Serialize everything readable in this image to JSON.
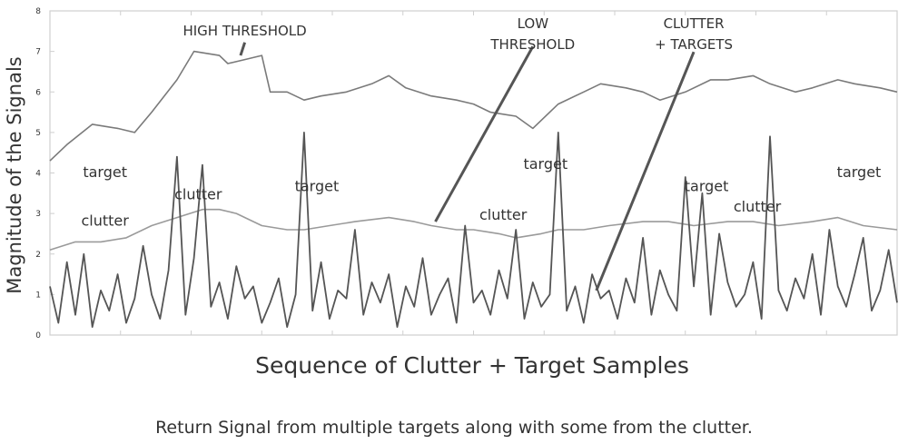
{
  "colors": {
    "background": "#ffffff",
    "frame": "#cfcfcf",
    "high_threshold": "#7a7a7a",
    "low_threshold": "#9a9a9a",
    "clutter_targets": "#555555",
    "text": "#333333"
  },
  "chart_data": {
    "type": "line",
    "xlabel": "Sequence of Clutter + Target Samples",
    "ylabel": "Magnitude of the Signals",
    "ylim": [
      0,
      8
    ],
    "yticks": [
      "0",
      "1",
      "2",
      "3",
      "4",
      "5",
      "6",
      "7",
      "8"
    ],
    "xlim": [
      0,
      100
    ],
    "grid": false,
    "series": [
      {
        "name": "HIGH THRESHOLD",
        "x": [
          0,
          2,
          5,
          8,
          10,
          12,
          15,
          17,
          20,
          21,
          23,
          25,
          26,
          28,
          30,
          32,
          35,
          38,
          40,
          42,
          45,
          48,
          50,
          52,
          55,
          57,
          60,
          63,
          65,
          68,
          70,
          72,
          75,
          78,
          80,
          83,
          85,
          88,
          90,
          93,
          95,
          98,
          100
        ],
        "y": [
          4.3,
          4.7,
          5.2,
          5.1,
          5.0,
          5.5,
          6.3,
          7.0,
          6.9,
          6.7,
          6.8,
          6.9,
          6.0,
          6.0,
          5.8,
          5.9,
          6.0,
          6.2,
          6.4,
          6.1,
          5.9,
          5.8,
          5.7,
          5.5,
          5.4,
          5.1,
          5.7,
          6.0,
          6.2,
          6.1,
          6.0,
          5.8,
          6.0,
          6.3,
          6.3,
          6.4,
          6.2,
          6.0,
          6.1,
          6.3,
          6.2,
          6.1,
          6.0
        ]
      },
      {
        "name": "LOW THRESHOLD",
        "x": [
          0,
          3,
          6,
          9,
          12,
          15,
          18,
          20,
          22,
          25,
          28,
          30,
          33,
          36,
          40,
          43,
          45,
          48,
          50,
          53,
          55,
          58,
          60,
          63,
          66,
          70,
          73,
          76,
          80,
          83,
          86,
          90,
          93,
          96,
          100
        ],
        "y": [
          2.1,
          2.3,
          2.3,
          2.4,
          2.7,
          2.9,
          3.1,
          3.1,
          3.0,
          2.7,
          2.6,
          2.6,
          2.7,
          2.8,
          2.9,
          2.8,
          2.7,
          2.6,
          2.6,
          2.5,
          2.4,
          2.5,
          2.6,
          2.6,
          2.7,
          2.8,
          2.8,
          2.7,
          2.8,
          2.8,
          2.7,
          2.8,
          2.9,
          2.7,
          2.6
        ]
      },
      {
        "name": "CLUTTER + TARGETS",
        "x": [
          0,
          1,
          2,
          3,
          4,
          5,
          6,
          7,
          8,
          9,
          10,
          11,
          12,
          13,
          14,
          15,
          16,
          17,
          18,
          19,
          20,
          21,
          22,
          23,
          24,
          25,
          26,
          27,
          28,
          29,
          30,
          31,
          32,
          33,
          34,
          35,
          36,
          37,
          38,
          39,
          40,
          41,
          42,
          43,
          44,
          45,
          46,
          47,
          48,
          49,
          50,
          51,
          52,
          53,
          54,
          55,
          56,
          57,
          58,
          59,
          60,
          61,
          62,
          63,
          64,
          65,
          66,
          67,
          68,
          69,
          70,
          71,
          72,
          73,
          74,
          75,
          76,
          77,
          78,
          79,
          80,
          81,
          82,
          83,
          84,
          85,
          86,
          87,
          88,
          89,
          90,
          91,
          92,
          93,
          94,
          95,
          96,
          97,
          98,
          99,
          100
        ],
        "y": [
          1.2,
          0.3,
          1.8,
          0.5,
          2.0,
          0.2,
          1.1,
          0.6,
          1.5,
          0.3,
          0.9,
          2.2,
          1.0,
          0.4,
          1.6,
          4.4,
          0.5,
          1.9,
          4.2,
          0.7,
          1.3,
          0.4,
          1.7,
          0.9,
          1.2,
          0.3,
          0.8,
          1.4,
          0.2,
          1.0,
          5.0,
          0.6,
          1.8,
          0.4,
          1.1,
          0.9,
          2.6,
          0.5,
          1.3,
          0.8,
          1.5,
          0.2,
          1.2,
          0.7,
          1.9,
          0.5,
          1.0,
          1.4,
          0.3,
          2.7,
          0.8,
          1.1,
          0.5,
          1.6,
          0.9,
          2.6,
          0.4,
          1.3,
          0.7,
          1.0,
          5.0,
          0.6,
          1.2,
          0.3,
          1.5,
          0.9,
          1.1,
          0.4,
          1.4,
          0.8,
          2.4,
          0.5,
          1.6,
          1.0,
          0.6,
          3.9,
          1.2,
          3.5,
          0.5,
          2.5,
          1.3,
          0.7,
          1.0,
          1.8,
          0.4,
          4.9,
          1.1,
          0.6,
          1.4,
          0.9,
          2.0,
          0.5,
          2.6,
          1.2,
          0.7,
          1.5,
          2.4,
          0.6,
          1.1,
          2.1,
          0.8
        ]
      }
    ],
    "annotations": [
      {
        "text": "HIGH THRESHOLD",
        "at": [
          23,
          7.4
        ],
        "points_to": [
          22.5,
          6.9
        ]
      },
      {
        "text": "LOW THRESHOLD",
        "at": [
          57,
          7.3
        ],
        "points_to": [
          45.5,
          2.8
        ]
      },
      {
        "text": "CLUTTER + TARGETS",
        "at": [
          76,
          7.3
        ],
        "points_to": [
          64.5,
          1.1
        ]
      },
      {
        "text": "target",
        "at": [
          6.5,
          3.9
        ]
      },
      {
        "text": "clutter",
        "at": [
          6.5,
          2.7
        ]
      },
      {
        "text": "clutter",
        "at": [
          17.5,
          3.35
        ]
      },
      {
        "text": "target",
        "at": [
          31.5,
          3.55
        ]
      },
      {
        "text": "clutter",
        "at": [
          53.5,
          2.85
        ]
      },
      {
        "text": "target",
        "at": [
          58.5,
          4.1
        ]
      },
      {
        "text": "target",
        "at": [
          77.5,
          3.55
        ]
      },
      {
        "text": "clutter",
        "at": [
          83.5,
          3.05
        ]
      },
      {
        "text": "target",
        "at": [
          95.5,
          3.9
        ]
      }
    ]
  },
  "caption": "Return Signal from multiple targets along with some from the clutter."
}
